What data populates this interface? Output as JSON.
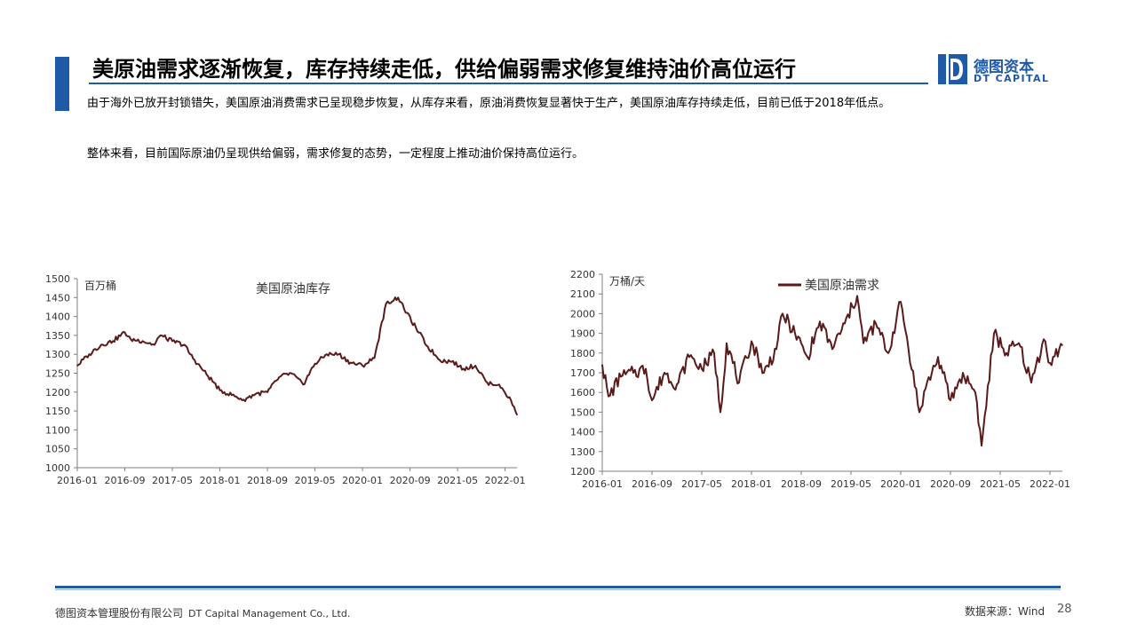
{
  "slide": {
    "title": "美原油需求逐渐恢复，库存持续走低，供给偏弱需求修复维持油价高位运行",
    "para1": "由于海外已放开封锁错失，美国原油消费需求已呈现稳步恢复，从库存来看，原油消费恢复显著快于生产，美国原油库存持续走低，目前已低于2018年低点。",
    "para2": "整体来看，目前国际原油仍呈现供给偏弱，需求修复的态势，一定程度上推动油价保持高位运行。",
    "page_number": "28"
  },
  "logo": {
    "cn": "德图资本",
    "en": "DT CAPITAL",
    "mark_letter": "D"
  },
  "footer": {
    "company_cn": "德图资本管理股份有限公司",
    "company_en": "DT Capital Management Co., Ltd.",
    "source": "数据来源：Wind"
  },
  "colors": {
    "brand_blue": "#1f5aa6",
    "series_line": "#5b1a1a",
    "axis": "#7f7f7f"
  },
  "chart_data": [
    {
      "type": "line",
      "title": "美国原油库存",
      "unit_label": "百万桶",
      "legend": "none",
      "grid": false,
      "ylim": [
        1000,
        1500
      ],
      "yticks": [
        1000,
        1050,
        1100,
        1150,
        1200,
        1250,
        1300,
        1350,
        1400,
        1450,
        1500
      ],
      "xticks": [
        "2016-01",
        "2016-09",
        "2017-05",
        "2018-01",
        "2018-09",
        "2019-05",
        "2020-01",
        "2020-09",
        "2021-05",
        "2022-01"
      ],
      "xrange": [
        "2016-01",
        "2022-03"
      ],
      "series": [
        {
          "x": [
            "2016-01",
            "2016-03",
            "2016-05",
            "2016-07",
            "2016-09",
            "2016-10",
            "2016-12",
            "2017-02",
            "2017-03",
            "2017-05",
            "2017-07",
            "2017-08",
            "2017-10",
            "2017-12",
            "2018-01",
            "2018-03",
            "2018-05",
            "2018-07",
            "2018-09",
            "2018-11",
            "2019-01",
            "2019-03",
            "2019-05",
            "2019-07",
            "2019-09",
            "2019-11",
            "2020-01",
            "2020-03",
            "2020-05",
            "2020-07",
            "2020-08",
            "2020-10",
            "2020-12",
            "2021-02",
            "2021-04",
            "2021-06",
            "2021-08",
            "2021-10",
            "2021-12",
            "2022-02",
            "2022-03"
          ],
          "values": [
            1270,
            1300,
            1325,
            1335,
            1358,
            1340,
            1335,
            1325,
            1350,
            1335,
            1325,
            1300,
            1260,
            1225,
            1205,
            1192,
            1180,
            1195,
            1200,
            1240,
            1250,
            1220,
            1275,
            1300,
            1300,
            1278,
            1270,
            1290,
            1435,
            1450,
            1420,
            1370,
            1320,
            1285,
            1280,
            1262,
            1270,
            1225,
            1220,
            1178,
            1140
          ]
        }
      ]
    },
    {
      "type": "line",
      "title": "",
      "unit_label": "万桶/天",
      "legend": "top-center",
      "grid": false,
      "ylim": [
        1200,
        2200
      ],
      "yticks": [
        1200,
        1300,
        1400,
        1500,
        1600,
        1700,
        1800,
        1900,
        2000,
        2100,
        2200
      ],
      "xticks": [
        "2016-01",
        "2016-09",
        "2017-05",
        "2018-01",
        "2018-09",
        "2019-05",
        "2020-01",
        "2020-09",
        "2021-05",
        "2022-01"
      ],
      "xrange": [
        "2016-01",
        "2022-03"
      ],
      "series": [
        {
          "name": "美国原油需求",
          "x": [
            "2016-01",
            "2016-02",
            "2016-04",
            "2016-06",
            "2016-08",
            "2016-09",
            "2016-11",
            "2017-01",
            "2017-03",
            "2017-05",
            "2017-07",
            "2017-08",
            "2017-09",
            "2017-11",
            "2018-01",
            "2018-03",
            "2018-05",
            "2018-06",
            "2018-08",
            "2018-10",
            "2018-12",
            "2019-02",
            "2019-04",
            "2019-06",
            "2019-07",
            "2019-09",
            "2019-11",
            "2020-01",
            "2020-02",
            "2020-04",
            "2020-05",
            "2020-07",
            "2020-09",
            "2020-11",
            "2021-01",
            "2021-02",
            "2021-04",
            "2021-06",
            "2021-08",
            "2021-10",
            "2021-12",
            "2022-01",
            "2022-03"
          ],
          "values": [
            1740,
            1580,
            1680,
            1700,
            1720,
            1560,
            1700,
            1640,
            1780,
            1720,
            1800,
            1500,
            1850,
            1650,
            1860,
            1700,
            1820,
            2000,
            1900,
            1780,
            1960,
            1820,
            1950,
            2090,
            1850,
            1950,
            1800,
            2060,
            1880,
            1500,
            1620,
            1780,
            1560,
            1700,
            1600,
            1330,
            1900,
            1800,
            1850,
            1650,
            1870,
            1750,
            1840
          ]
        }
      ]
    }
  ]
}
